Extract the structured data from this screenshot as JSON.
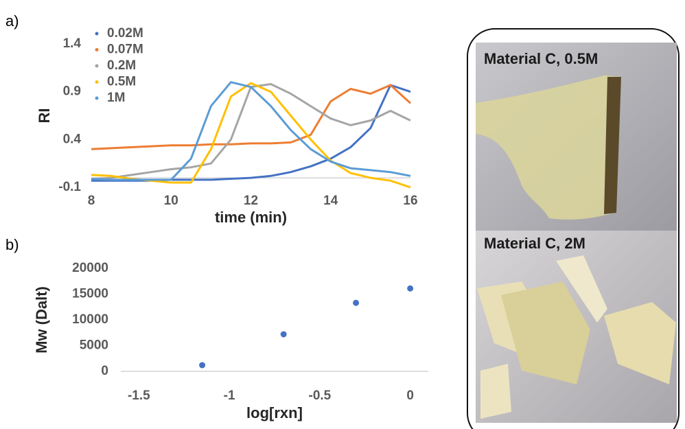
{
  "panel_labels": [
    "a)",
    "b)"
  ],
  "chart_data": [
    {
      "type": "line",
      "xlabel": "time (min)",
      "ylabel": "RI",
      "x": [
        8,
        8.5,
        9,
        9.5,
        10,
        10.5,
        11,
        11.5,
        12,
        12.5,
        13,
        13.5,
        14,
        14.5,
        15,
        15.5,
        16
      ],
      "xlim": [
        8,
        16
      ],
      "xticks": [
        8,
        10,
        12,
        14,
        16
      ],
      "ylim": [
        -0.1,
        1.4
      ],
      "yticks": [
        -0.1,
        0.4,
        0.9,
        1.4
      ],
      "legend": "top-left",
      "series": [
        {
          "name": "0.02M",
          "color": "#4472c4",
          "values": [
            -0.03,
            -0.03,
            -0.03,
            -0.03,
            -0.02,
            -0.02,
            -0.02,
            -0.01,
            0.0,
            0.02,
            0.06,
            0.12,
            0.2,
            0.32,
            0.52,
            0.97,
            0.9
          ]
        },
        {
          "name": "0.07M",
          "color": "#ed7d31",
          "values": [
            0.3,
            0.31,
            0.32,
            0.33,
            0.34,
            0.34,
            0.35,
            0.35,
            0.36,
            0.36,
            0.37,
            0.45,
            0.8,
            0.93,
            0.88,
            0.97,
            0.78
          ]
        },
        {
          "name": "0.2M",
          "color": "#a5a5a5",
          "values": [
            -0.01,
            0.0,
            0.03,
            0.06,
            0.09,
            0.11,
            0.15,
            0.4,
            0.95,
            0.98,
            0.88,
            0.75,
            0.62,
            0.55,
            0.6,
            0.7,
            0.6
          ]
        },
        {
          "name": "0.5M",
          "color": "#ffc000",
          "values": [
            0.03,
            0.02,
            -0.01,
            -0.03,
            -0.05,
            -0.05,
            0.3,
            0.85,
            0.99,
            0.9,
            0.65,
            0.4,
            0.18,
            0.05,
            0.0,
            -0.03,
            -0.1
          ]
        },
        {
          "name": "1M",
          "color": "#5b9bd5",
          "values": [
            -0.01,
            -0.02,
            -0.02,
            -0.02,
            -0.02,
            0.2,
            0.75,
            1.0,
            0.95,
            0.75,
            0.5,
            0.3,
            0.17,
            0.1,
            0.08,
            0.06,
            0.02
          ]
        }
      ]
    },
    {
      "type": "scatter",
      "xlabel": "log[rxn]",
      "ylabel": "Mw (Dalt)",
      "xlim": [
        -1.6,
        0.1
      ],
      "xticks": [
        -1.5,
        -1,
        -0.5,
        0
      ],
      "ylim": [
        0,
        20000
      ],
      "yticks": [
        0,
        5000,
        10000,
        15000,
        20000
      ],
      "series": [
        {
          "color": "#4472c4",
          "x": [
            -1.15,
            -0.7,
            -0.3,
            0
          ],
          "values": [
            1200,
            7200,
            13300,
            16100
          ]
        }
      ]
    }
  ],
  "photos": [
    {
      "label": "Material C, 0.5M"
    },
    {
      "label": "Material C, 2M"
    }
  ]
}
